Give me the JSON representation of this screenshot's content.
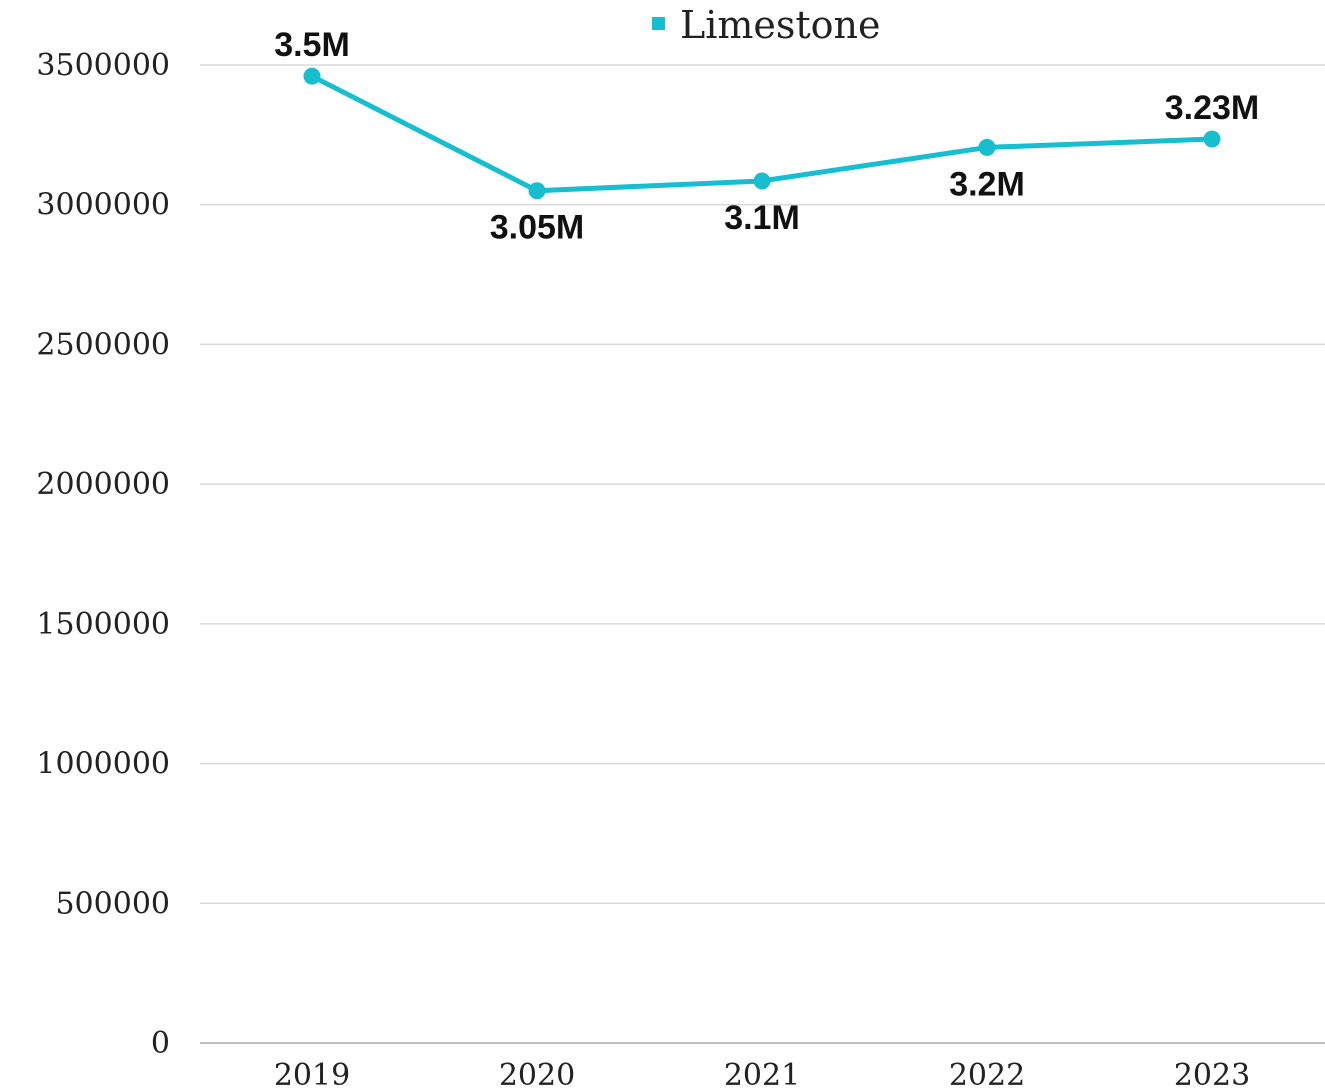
{
  "chart_data": {
    "type": "line",
    "categories": [
      "2019",
      "2020",
      "2021",
      "2022",
      "2023"
    ],
    "series": [
      {
        "name": "Limestone",
        "values": [
          3460000,
          3050000,
          3085000,
          3205000,
          3235000
        ],
        "data_labels": [
          "3.5M",
          "3.05M",
          "3.1M",
          "3.2M",
          "3.23M"
        ],
        "label_positions": [
          "above",
          "below",
          "below",
          "below",
          "above"
        ],
        "color": "#17becf"
      }
    ],
    "y_ticks": [
      "0",
      "500000",
      "1000000",
      "1500000",
      "2000000",
      "2500000",
      "3000000",
      "3500000"
    ],
    "ylim": [
      0,
      3500000
    ],
    "grid": true,
    "legend_position": "top-center",
    "title": "",
    "xlabel": "",
    "ylabel": ""
  }
}
